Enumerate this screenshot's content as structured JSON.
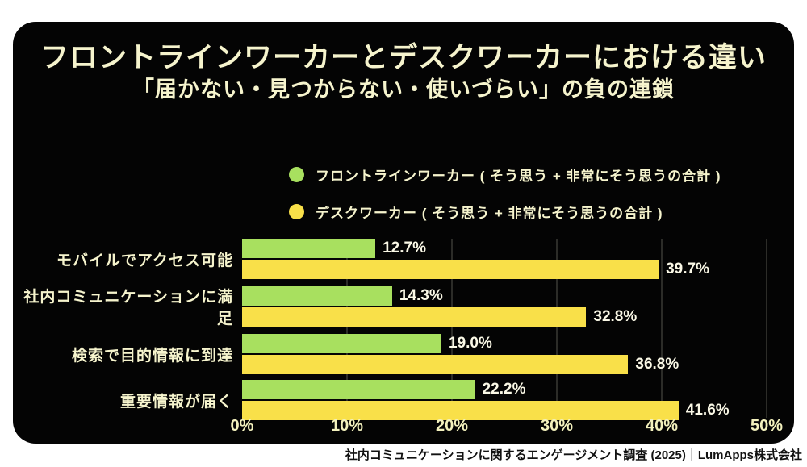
{
  "page": {
    "title": "フロントラインワーカーとデスクワーカーにおける違い",
    "subtitle": "「届かない・見つからない・使いづらい」の負の連鎖",
    "footer": "社内コミュニケーションに関するエンゲージメント調査 (2025)｜LumApps株式会社"
  },
  "colors": {
    "background": "#ffffff",
    "panel": "#040404",
    "frontline_green": "#a8e05f",
    "desk_yellow": "#f9e049",
    "heading_text": "#f6f4cd",
    "value_text": "#faf8e6",
    "axis_text": "#f3f1bd",
    "gridline": "#2c2c28",
    "footer_text": "#111111"
  },
  "legend": [
    {
      "label": "フロントラインワーカー ( そう思う + 非常にそう思うの合計 )",
      "color": "#a8e05f"
    },
    {
      "label": "デスクワーカー ( そう思う + 非常にそう思うの合計 )",
      "color": "#f9e049"
    }
  ],
  "chart_data": {
    "type": "bar",
    "orientation": "horizontal",
    "title": "フロントラインワーカーとデスクワーカーにおける違い",
    "subtitle": "「届かない・見つからない・使いづらい」の負の連鎖",
    "categories": [
      "モバイルでアクセス可能",
      "社内コミュニケーションに満足",
      "検索で目的情報に到達",
      "重要情報が届く"
    ],
    "series": [
      {
        "name": "フロントラインワーカー",
        "color": "#a8e05f",
        "values": [
          12.7,
          14.3,
          19.0,
          22.2
        ]
      },
      {
        "name": "デスクワーカー",
        "color": "#f9e049",
        "values": [
          39.7,
          32.8,
          36.8,
          41.6
        ]
      }
    ],
    "value_label_format": "percent_one_decimal",
    "xlim": [
      0,
      50
    ],
    "x_ticks": [
      "0%",
      "10%",
      "20%",
      "30%",
      "40%",
      "50%"
    ],
    "grid": true,
    "legend_position": "top"
  }
}
